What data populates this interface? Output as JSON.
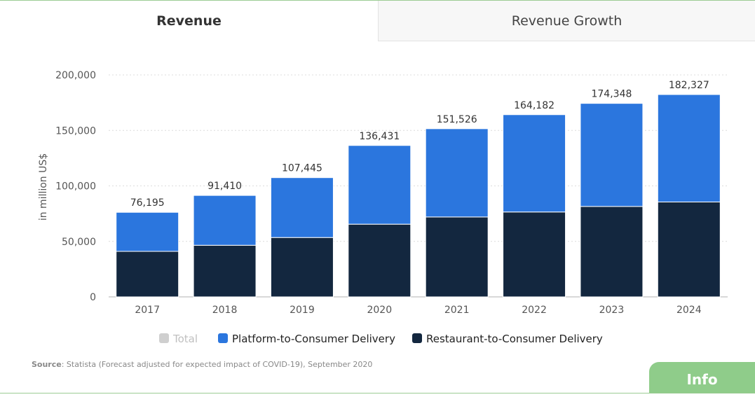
{
  "tabs": {
    "active": "Revenue",
    "inactive": "Revenue Growth"
  },
  "colors": {
    "platform": "#2b76de",
    "restaurant": "#13273f",
    "total": "#cfcfcf",
    "info": "#8fcc8a"
  },
  "chart_data": {
    "type": "bar",
    "stacked": true,
    "categories": [
      "2017",
      "2018",
      "2019",
      "2020",
      "2021",
      "2022",
      "2023",
      "2024"
    ],
    "series": [
      {
        "name": "Restaurant-to-Consumer Delivery",
        "values": [
          41000,
          46500,
          53500,
          65500,
          72000,
          76500,
          81500,
          85500
        ]
      },
      {
        "name": "Platform-to-Consumer Delivery",
        "values": [
          35195,
          44910,
          53945,
          70931,
          79526,
          87682,
          92848,
          96827
        ]
      }
    ],
    "totals": [
      "76,195",
      "91,410",
      "107,445",
      "136,431",
      "151,526",
      "164,182",
      "174,348",
      "182,327"
    ],
    "total_values": [
      76195,
      91410,
      107445,
      136431,
      151526,
      164182,
      174348,
      182327
    ],
    "ylabel": "in million US$",
    "ylim": [
      0,
      200000
    ],
    "yticks": [
      0,
      50000,
      100000,
      150000,
      200000
    ],
    "ytick_labels": [
      "0",
      "50,000",
      "100,000",
      "150,000",
      "200,000"
    ],
    "grid": true,
    "legend_position": "bottom"
  },
  "legend": {
    "total": "Total",
    "platform": "Platform-to-Consumer Delivery",
    "restaurant": "Restaurant-to-Consumer Delivery"
  },
  "source": {
    "label": "Source",
    "text": ": Statista (Forecast adjusted for expected impact of COVID-19), September 2020"
  },
  "info_button": "Info"
}
